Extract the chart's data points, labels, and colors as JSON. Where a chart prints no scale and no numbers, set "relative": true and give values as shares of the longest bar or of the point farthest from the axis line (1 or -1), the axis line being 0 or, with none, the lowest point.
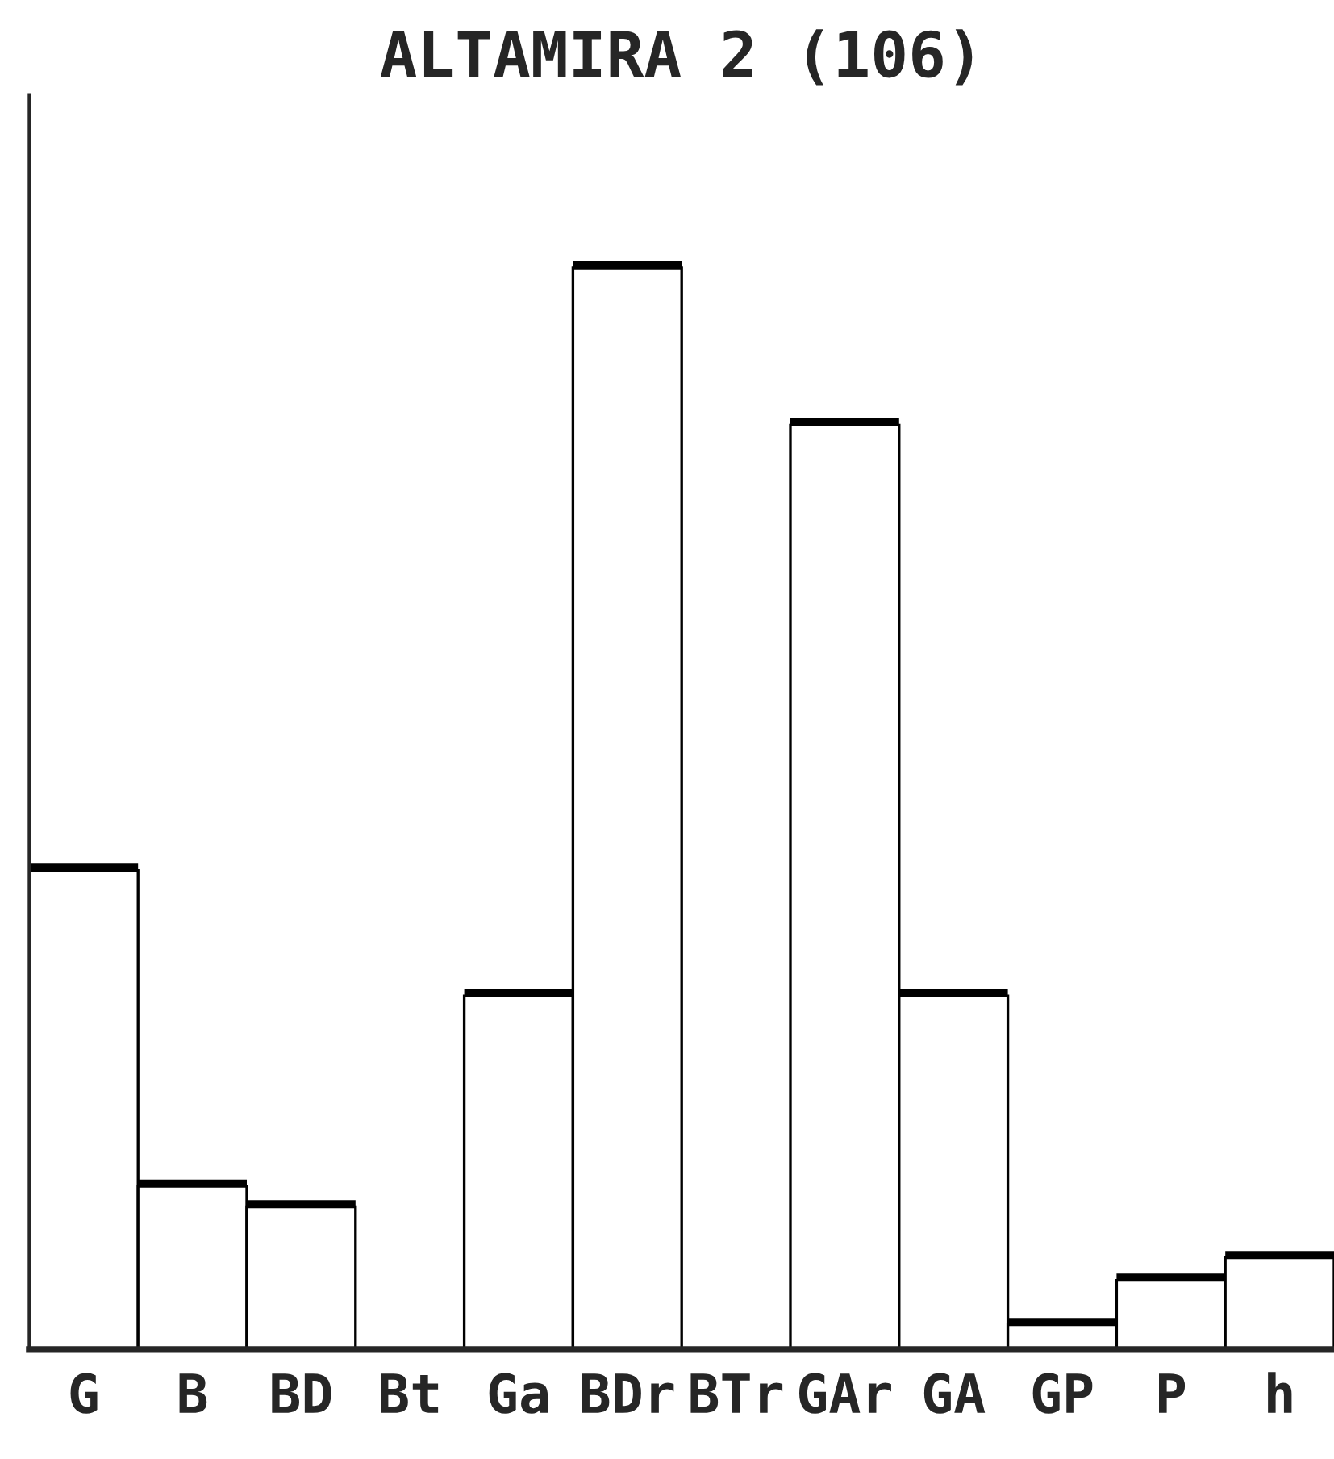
{
  "chart_data": {
    "type": "bar",
    "title": "ALTAMIRA 2 (106)",
    "relative": true,
    "categories": [
      "G",
      "B",
      "BD",
      "Bt",
      "Ga",
      "BDr",
      "BTr",
      "GAr",
      "GA",
      "GP",
      "P",
      "h"
    ],
    "values": [
      0.443,
      0.151,
      0.132,
      0,
      0.327,
      1,
      0,
      0.855,
      0.327,
      0.023,
      0.064,
      0.085
    ],
    "color": "#ffffff",
    "grid": false,
    "legend": false
  }
}
